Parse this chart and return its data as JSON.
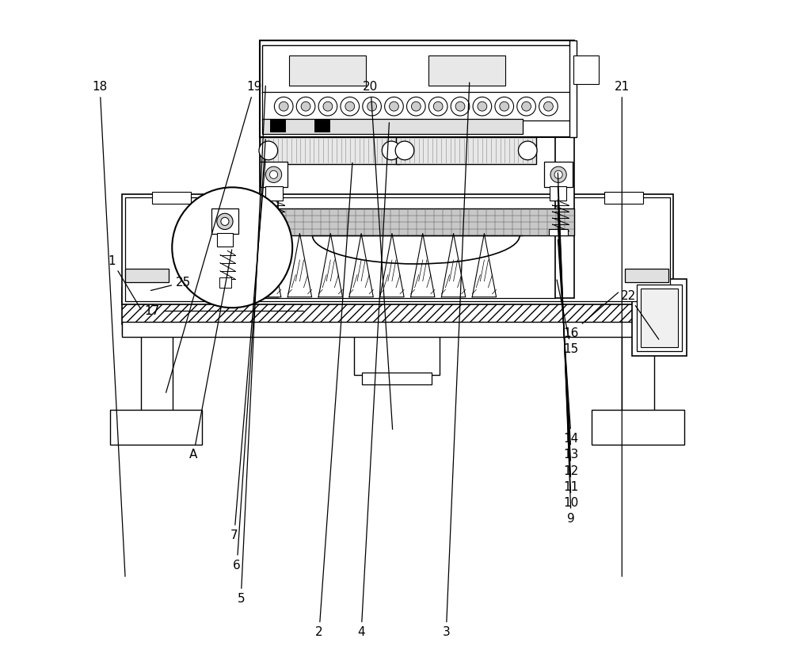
{
  "bg_color": "#ffffff",
  "lc": "#000000",
  "labels": {
    "1": [
      0.075,
      0.61,
      0.12,
      0.535
    ],
    "2": [
      0.385,
      0.055,
      0.435,
      0.76
    ],
    "3": [
      0.575,
      0.055,
      0.61,
      0.88
    ],
    "4": [
      0.448,
      0.055,
      0.49,
      0.82
    ],
    "5": [
      0.268,
      0.105,
      0.305,
      0.875
    ],
    "6": [
      0.262,
      0.155,
      0.305,
      0.795
    ],
    "7": [
      0.258,
      0.2,
      0.305,
      0.765
    ],
    "9": [
      0.762,
      0.225,
      0.742,
      0.745
    ],
    "10": [
      0.762,
      0.248,
      0.742,
      0.725
    ],
    "11": [
      0.762,
      0.272,
      0.742,
      0.705
    ],
    "12": [
      0.762,
      0.296,
      0.742,
      0.685
    ],
    "13": [
      0.762,
      0.32,
      0.742,
      0.665
    ],
    "14": [
      0.762,
      0.344,
      0.742,
      0.645
    ],
    "15": [
      0.762,
      0.478,
      0.74,
      0.585
    ],
    "16": [
      0.762,
      0.502,
      0.835,
      0.565
    ],
    "17": [
      0.135,
      0.535,
      0.365,
      0.535
    ],
    "18": [
      0.057,
      0.87,
      0.095,
      0.135
    ],
    "19": [
      0.288,
      0.87,
      0.155,
      0.41
    ],
    "20": [
      0.462,
      0.87,
      0.495,
      0.355
    ],
    "21": [
      0.838,
      0.87,
      0.838,
      0.135
    ],
    "22": [
      0.848,
      0.558,
      0.895,
      0.49
    ],
    "25": [
      0.182,
      0.578,
      0.13,
      0.565
    ],
    "A": [
      0.197,
      0.32,
      0.255,
      0.63
    ]
  }
}
